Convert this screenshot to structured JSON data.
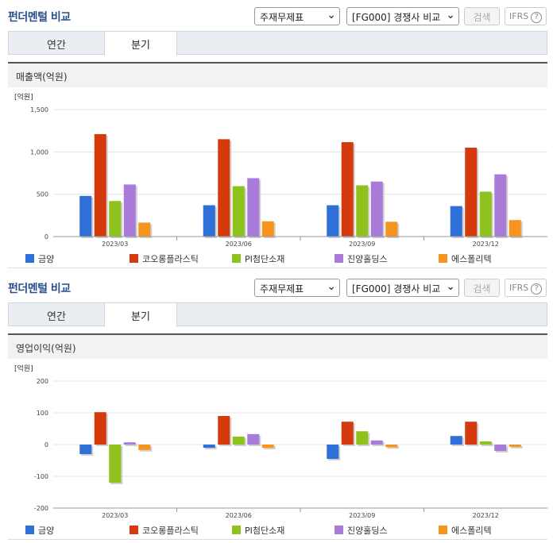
{
  "sections": [
    {
      "title": "펀더멘털 비교",
      "select1": "주재무제표",
      "select2": "[FG000] 경쟁사 비교",
      "search_label": "검색",
      "ifrs_label": "IFRS",
      "tabs": [
        "연간",
        "분기"
      ],
      "subtitle": "매출액(억원)"
    },
    {
      "title": "펀더멘털 비교",
      "select1": "주재무제표",
      "select2": "[FG000] 경쟁사 비교",
      "search_label": "검색",
      "ifrs_label": "IFRS",
      "tabs": [
        "연간",
        "분기"
      ],
      "subtitle": "영업이익(억원)"
    }
  ],
  "chart_data": [
    {
      "type": "bar",
      "unit_label": "[억원]",
      "categories": [
        "2023/03",
        "2023/06",
        "2023/09",
        "2023/12"
      ],
      "ylim": [
        0,
        1500
      ],
      "yticks": [
        0,
        500,
        1000,
        1500
      ],
      "ytick_labels": [
        "0",
        "500",
        "1,000",
        "1,500"
      ],
      "series": [
        {
          "name": "금양",
          "color": "#2e6fd8",
          "values": [
            480,
            370,
            370,
            360
          ]
        },
        {
          "name": "코오롱플라스틱",
          "color": "#d53a0c",
          "values": [
            1210,
            1150,
            1115,
            1050
          ]
        },
        {
          "name": "PI첨단소재",
          "color": "#8dc21f",
          "values": [
            420,
            595,
            605,
            530
          ]
        },
        {
          "name": "진양홀딩스",
          "color": "#a97bd9",
          "values": [
            615,
            690,
            650,
            735
          ]
        },
        {
          "name": "에스폴리텍",
          "color": "#f7941d",
          "values": [
            165,
            180,
            175,
            195
          ]
        }
      ]
    },
    {
      "type": "bar",
      "unit_label": "[억원]",
      "categories": [
        "2023/03",
        "2023/06",
        "2023/09",
        "2023/12"
      ],
      "ylim": [
        -200,
        200
      ],
      "yticks": [
        -200,
        -100,
        0,
        100,
        200
      ],
      "ytick_labels": [
        "-200",
        "-100",
        "0",
        "100",
        "200"
      ],
      "series": [
        {
          "name": "금양",
          "color": "#2e6fd8",
          "values": [
            -30,
            -10,
            -45,
            27
          ]
        },
        {
          "name": "코오롱플라스틱",
          "color": "#d53a0c",
          "values": [
            102,
            90,
            72,
            72
          ]
        },
        {
          "name": "PI첨단소재",
          "color": "#8dc21f",
          "values": [
            -120,
            25,
            42,
            10
          ]
        },
        {
          "name": "진양홀딩스",
          "color": "#a97bd9",
          "values": [
            7,
            33,
            13,
            -20
          ]
        },
        {
          "name": "에스폴리텍",
          "color": "#f7941d",
          "values": [
            -17,
            -10,
            -8,
            -7
          ]
        }
      ]
    }
  ]
}
